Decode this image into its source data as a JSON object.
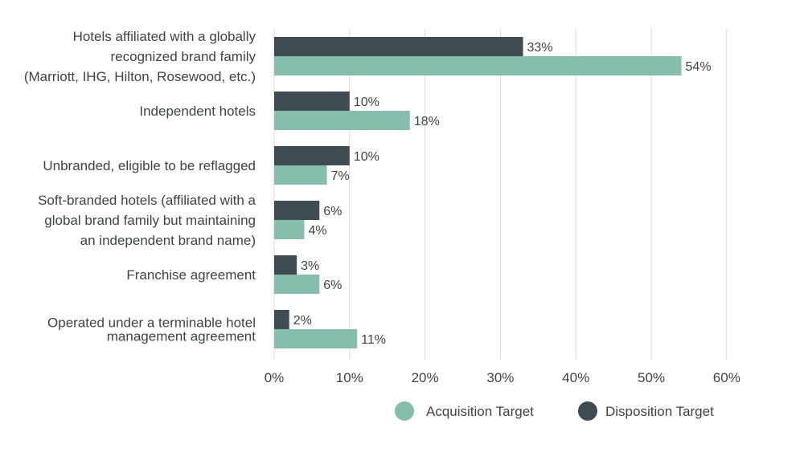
{
  "chart_data": {
    "type": "bar",
    "orientation": "horizontal",
    "categories": [
      [
        "Hotels affiliated with a globally",
        "recognized brand family",
        "(Marriott, IHG, Hilton, Rosewood, etc.)"
      ],
      [
        "Independent hotels"
      ],
      [
        "Unbranded, eligible to be reflagged"
      ],
      [
        "Soft-branded hotels (affiliated with a",
        "global brand family but maintaining",
        "an independent brand name)"
      ],
      [
        "Franchise agreement"
      ],
      [
        "Operated under a terminable hotel",
        "management agreement"
      ]
    ],
    "series": [
      {
        "name": "Disposition Target",
        "color": "#3f4d52",
        "values": [
          33,
          10,
          10,
          6,
          3,
          2
        ]
      },
      {
        "name": "Acquisition Target",
        "color": "#86bdad",
        "values": [
          54,
          18,
          7,
          4,
          6,
          11
        ]
      }
    ],
    "xlim": [
      0,
      60
    ],
    "xticks": [
      0,
      10,
      20,
      30,
      40,
      50,
      60
    ],
    "tick_format": "{v}%",
    "value_format": "{v}%",
    "grid": true,
    "legend": {
      "placement": "bottom",
      "order": [
        "Acquisition Target",
        "Disposition Target"
      ]
    },
    "colors": {
      "text": "#3d4447",
      "grid": "#d9d9d9"
    }
  }
}
